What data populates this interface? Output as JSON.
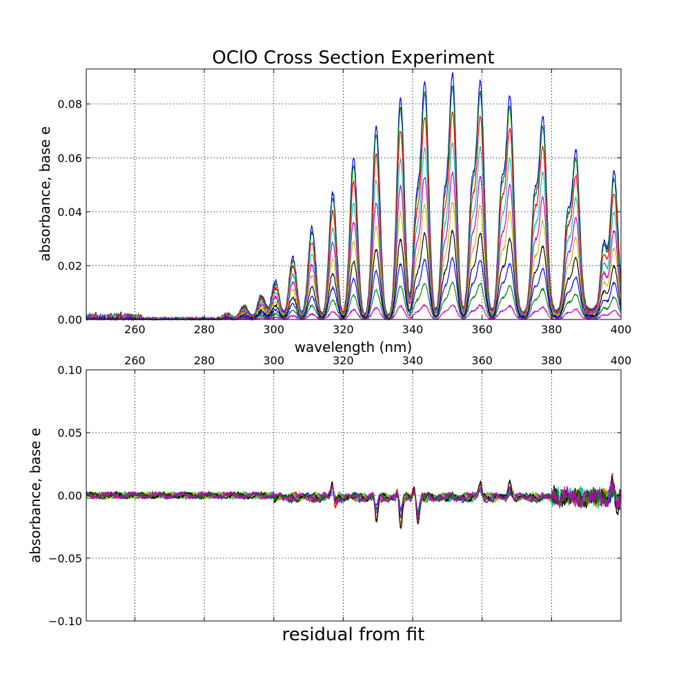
{
  "chart_data": [
    {
      "type": "line",
      "title": "OClO Cross Section Experiment",
      "xlabel": "wavelength (nm)",
      "ylabel": "absorbance, base e",
      "xlim": [
        246,
        400
      ],
      "ylim": [
        0,
        0.093
      ],
      "xticks": [
        260,
        280,
        300,
        320,
        340,
        360,
        380,
        400
      ],
      "xtick_labels": [
        "260",
        "280",
        "300",
        "320",
        "340",
        "360",
        "380",
        "400"
      ],
      "yticks": [
        0,
        0.02,
        0.04,
        0.06,
        0.08
      ],
      "ytick_labels": [
        "0.00",
        "0.02",
        "0.04",
        "0.06",
        "0.08"
      ],
      "grid": true,
      "n_series": 10,
      "series_colors": [
        "#0000ff",
        "#008000",
        "#ff0000",
        "#00bfbf",
        "#bf00bf",
        "#bfbf00",
        "#000000",
        "#0000ff",
        "#008000",
        "#bf00bf"
      ],
      "series_scale": [
        1.0,
        0.95,
        0.85,
        0.72,
        0.6,
        0.48,
        0.36,
        0.25,
        0.15,
        0.06
      ],
      "peaks": [
        {
          "x": 286.5,
          "y": 0.002
        },
        {
          "x": 291.5,
          "y": 0.005
        },
        {
          "x": 296.5,
          "y": 0.009
        },
        {
          "x": 300.5,
          "y": 0.014
        },
        {
          "x": 305.5,
          "y": 0.023
        },
        {
          "x": 311.0,
          "y": 0.034
        },
        {
          "x": 317.0,
          "y": 0.047
        },
        {
          "x": 323.0,
          "y": 0.06
        },
        {
          "x": 329.5,
          "y": 0.072
        },
        {
          "x": 336.5,
          "y": 0.082
        },
        {
          "x": 343.5,
          "y": 0.087
        },
        {
          "x": 351.5,
          "y": 0.089
        },
        {
          "x": 359.5,
          "y": 0.086
        },
        {
          "x": 368.0,
          "y": 0.08
        },
        {
          "x": 377.5,
          "y": 0.072
        },
        {
          "x": 387.0,
          "y": 0.059
        },
        {
          "x": 398.0,
          "y": 0.051
        }
      ],
      "secondary_peaks": [
        {
          "x": 341.0,
          "y": 0.038
        },
        {
          "x": 349.0,
          "y": 0.038
        },
        {
          "x": 357.0,
          "y": 0.043
        },
        {
          "x": 365.5,
          "y": 0.043
        },
        {
          "x": 375.0,
          "y": 0.039
        },
        {
          "x": 384.5,
          "y": 0.032
        },
        {
          "x": 395.0,
          "y": 0.024
        }
      ]
    },
    {
      "type": "line",
      "xlabel": "residual from fit",
      "ylabel": "absorbance, base e",
      "xlim": [
        246,
        400
      ],
      "ylim": [
        -0.1,
        0.1
      ],
      "xticks": [
        260,
        280,
        300,
        320,
        340,
        360,
        380,
        400
      ],
      "xtick_labels": [
        "260",
        "280",
        "300",
        "320",
        "340",
        "360",
        "380",
        "400"
      ],
      "xtick_position": "top",
      "yticks": [
        -0.1,
        -0.05,
        0,
        0.05,
        0.1
      ],
      "ytick_labels": [
        "−0.10",
        "−0.05",
        "0.00",
        "0.05",
        "0.10"
      ],
      "grid": true,
      "spikes": [
        {
          "x": 317.0,
          "y": 0.016
        },
        {
          "x": 317.5,
          "y": -0.01
        },
        {
          "x": 329.0,
          "y": 0.006
        },
        {
          "x": 329.5,
          "y": -0.021
        },
        {
          "x": 336.0,
          "y": 0.01
        },
        {
          "x": 336.5,
          "y": -0.029
        },
        {
          "x": 340.5,
          "y": 0.01
        },
        {
          "x": 341.5,
          "y": -0.023
        },
        {
          "x": 359.5,
          "y": 0.012
        },
        {
          "x": 368.0,
          "y": 0.012
        },
        {
          "x": 397.5,
          "y": 0.013
        },
        {
          "x": 399.0,
          "y": -0.008
        }
      ]
    }
  ]
}
